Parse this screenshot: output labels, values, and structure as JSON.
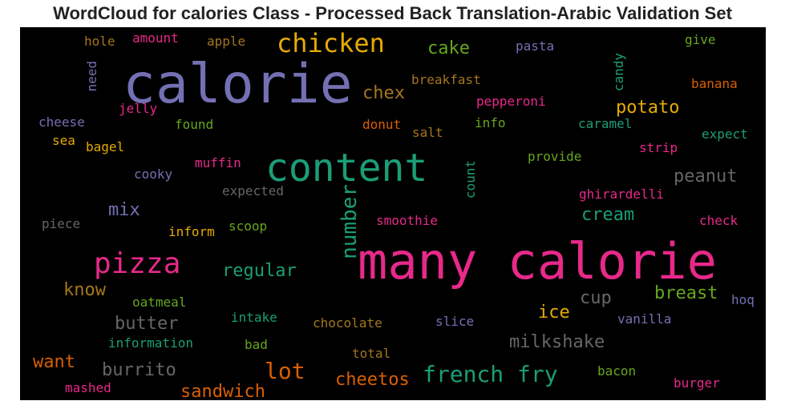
{
  "chart_data": {
    "type": "wordcloud",
    "title": "WordCloud for calories Class - Processed Back Translation-Arabic Validation Set",
    "background": "#000000",
    "palette": [
      "#7570b3",
      "#1b9e77",
      "#e7298a",
      "#d95f02",
      "#e6ab02",
      "#66a61e",
      "#a6761d",
      "#666666"
    ],
    "words": [
      {
        "text": "many calorie",
        "color": "#e7298a"
      },
      {
        "text": "calorie",
        "color": "#7570b3"
      },
      {
        "text": "content",
        "color": "#1b9e77"
      },
      {
        "text": "chicken",
        "color": "#e6ab02"
      },
      {
        "text": "pizza",
        "color": "#e7298a"
      },
      {
        "text": "french fry",
        "color": "#1b9e77"
      },
      {
        "text": "lot",
        "color": "#d95f02"
      },
      {
        "text": "number",
        "color": "#1b9e77"
      },
      {
        "text": "cake",
        "color": "#66a61e"
      },
      {
        "text": "chex",
        "color": "#a6761d"
      },
      {
        "text": "potato",
        "color": "#e6ab02"
      },
      {
        "text": "peanut",
        "color": "#666666"
      },
      {
        "text": "regular",
        "color": "#1b9e77"
      },
      {
        "text": "breast",
        "color": "#66a61e"
      },
      {
        "text": "cream",
        "color": "#1b9e77"
      },
      {
        "text": "mix",
        "color": "#7570b3"
      },
      {
        "text": "know",
        "color": "#a6761d"
      },
      {
        "text": "butter",
        "color": "#666666"
      },
      {
        "text": "ice",
        "color": "#e6ab02"
      },
      {
        "text": "cup",
        "color": "#666666"
      },
      {
        "text": "milkshake",
        "color": "#666666"
      },
      {
        "text": "sandwich",
        "color": "#d95f02"
      },
      {
        "text": "cheetos",
        "color": "#d95f02"
      },
      {
        "text": "burrito",
        "color": "#666666"
      },
      {
        "text": "want",
        "color": "#d95f02"
      },
      {
        "text": "hole",
        "color": "#a6761d"
      },
      {
        "text": "amount",
        "color": "#e7298a"
      },
      {
        "text": "apple",
        "color": "#a6761d"
      },
      {
        "text": "pasta",
        "color": "#7570b3"
      },
      {
        "text": "give",
        "color": "#66a61e"
      },
      {
        "text": "need",
        "color": "#7570b3"
      },
      {
        "text": "breakfast",
        "color": "#a6761d"
      },
      {
        "text": "candy",
        "color": "#1b9e77"
      },
      {
        "text": "banana",
        "color": "#d95f02"
      },
      {
        "text": "jelly",
        "color": "#e7298a"
      },
      {
        "text": "pepperoni",
        "color": "#e7298a"
      },
      {
        "text": "cheese",
        "color": "#7570b3"
      },
      {
        "text": "found",
        "color": "#66a61e"
      },
      {
        "text": "donut",
        "color": "#d95f02"
      },
      {
        "text": "info",
        "color": "#66a61e"
      },
      {
        "text": "caramel",
        "color": "#1b9e77"
      },
      {
        "text": "sea",
        "color": "#e6ab02"
      },
      {
        "text": "salt",
        "color": "#a6761d"
      },
      {
        "text": "expect",
        "color": "#1b9e77"
      },
      {
        "text": "bagel",
        "color": "#e6ab02"
      },
      {
        "text": "strip",
        "color": "#e7298a"
      },
      {
        "text": "provide",
        "color": "#66a61e"
      },
      {
        "text": "cooky",
        "color": "#7570b3"
      },
      {
        "text": "muffin",
        "color": "#e7298a"
      },
      {
        "text": "count",
        "color": "#1b9e77"
      },
      {
        "text": "expected",
        "color": "#666666"
      },
      {
        "text": "ghirardelli",
        "color": "#e7298a"
      },
      {
        "text": "piece",
        "color": "#666666"
      },
      {
        "text": "inform",
        "color": "#e6ab02"
      },
      {
        "text": "scoop",
        "color": "#66a61e"
      },
      {
        "text": "smoothie",
        "color": "#e7298a"
      },
      {
        "text": "check",
        "color": "#e7298a"
      },
      {
        "text": "oatmeal",
        "color": "#66a61e"
      },
      {
        "text": "hoq",
        "color": "#7570b3"
      },
      {
        "text": "intake",
        "color": "#1b9e77"
      },
      {
        "text": "chocolate",
        "color": "#a6761d"
      },
      {
        "text": "slice",
        "color": "#7570b3"
      },
      {
        "text": "vanilla",
        "color": "#7570b3"
      },
      {
        "text": "information",
        "color": "#1b9e77"
      },
      {
        "text": "bad",
        "color": "#66a61e"
      },
      {
        "text": "total",
        "color": "#a6761d"
      },
      {
        "text": "bacon",
        "color": "#66a61e"
      },
      {
        "text": "mashed",
        "color": "#e7298a"
      },
      {
        "text": "burger",
        "color": "#e7298a"
      }
    ]
  }
}
